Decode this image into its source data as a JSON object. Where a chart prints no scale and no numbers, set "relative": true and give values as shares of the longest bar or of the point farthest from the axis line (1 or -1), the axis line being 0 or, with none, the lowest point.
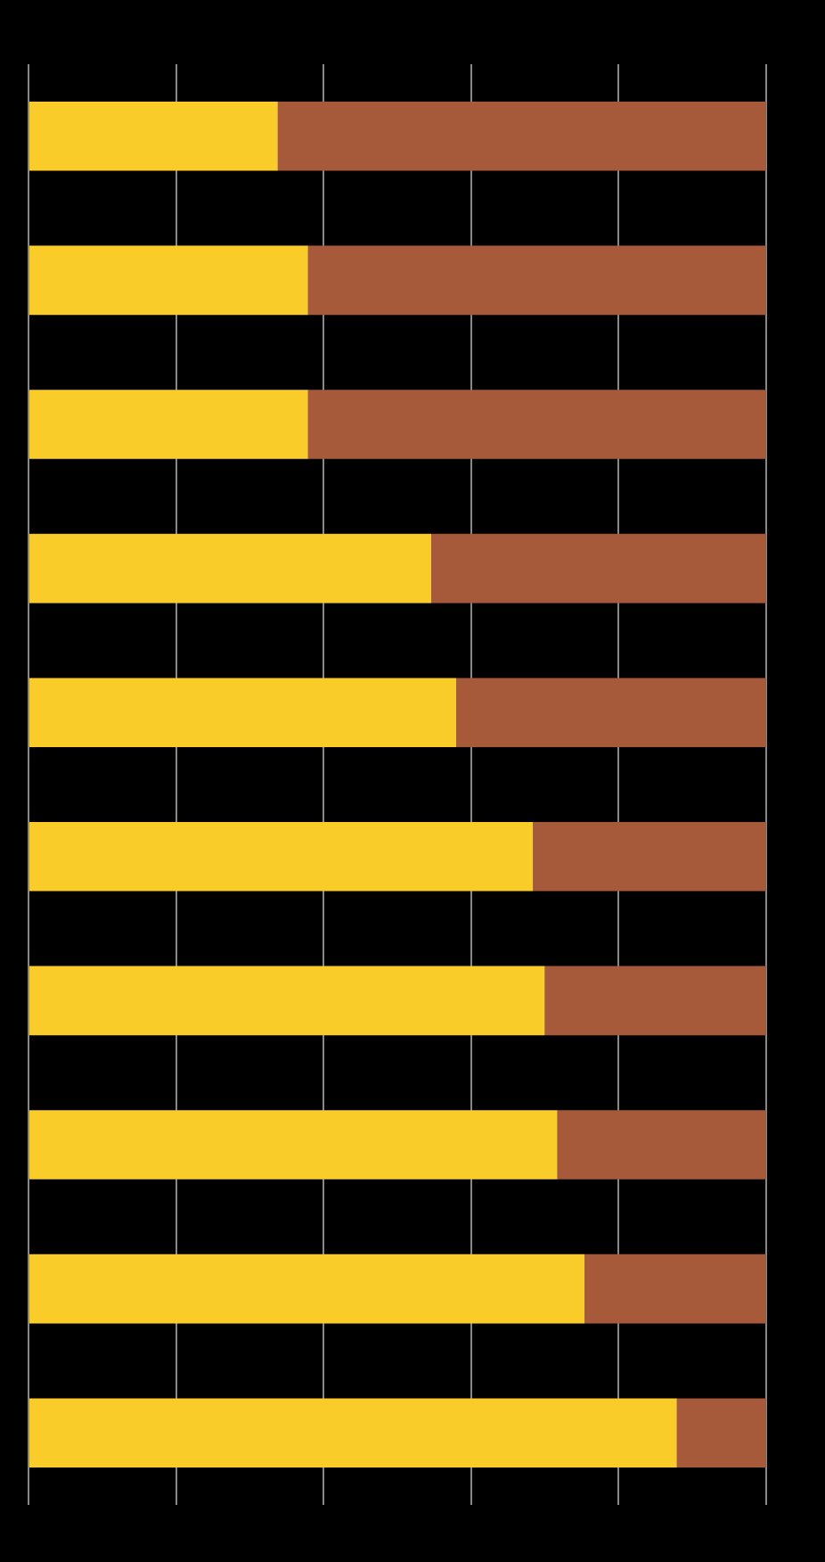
{
  "chart_data": {
    "type": "bar",
    "orientation": "horizontal",
    "stacked": true,
    "relative": true,
    "grid": "x",
    "categories": [
      null,
      null,
      null,
      null,
      null,
      null,
      null,
      null,
      null,
      null
    ],
    "series": [
      {
        "color": "#f9cc2a",
        "values": [
          0.338,
          0.379,
          0.379,
          0.546,
          0.58,
          0.684,
          0.7,
          0.717,
          0.754,
          0.879
        ]
      },
      {
        "color": "#a65a3a",
        "values": [
          0.662,
          0.621,
          0.621,
          0.454,
          0.42,
          0.316,
          0.3,
          0.283,
          0.246,
          0.121
        ]
      }
    ]
  }
}
